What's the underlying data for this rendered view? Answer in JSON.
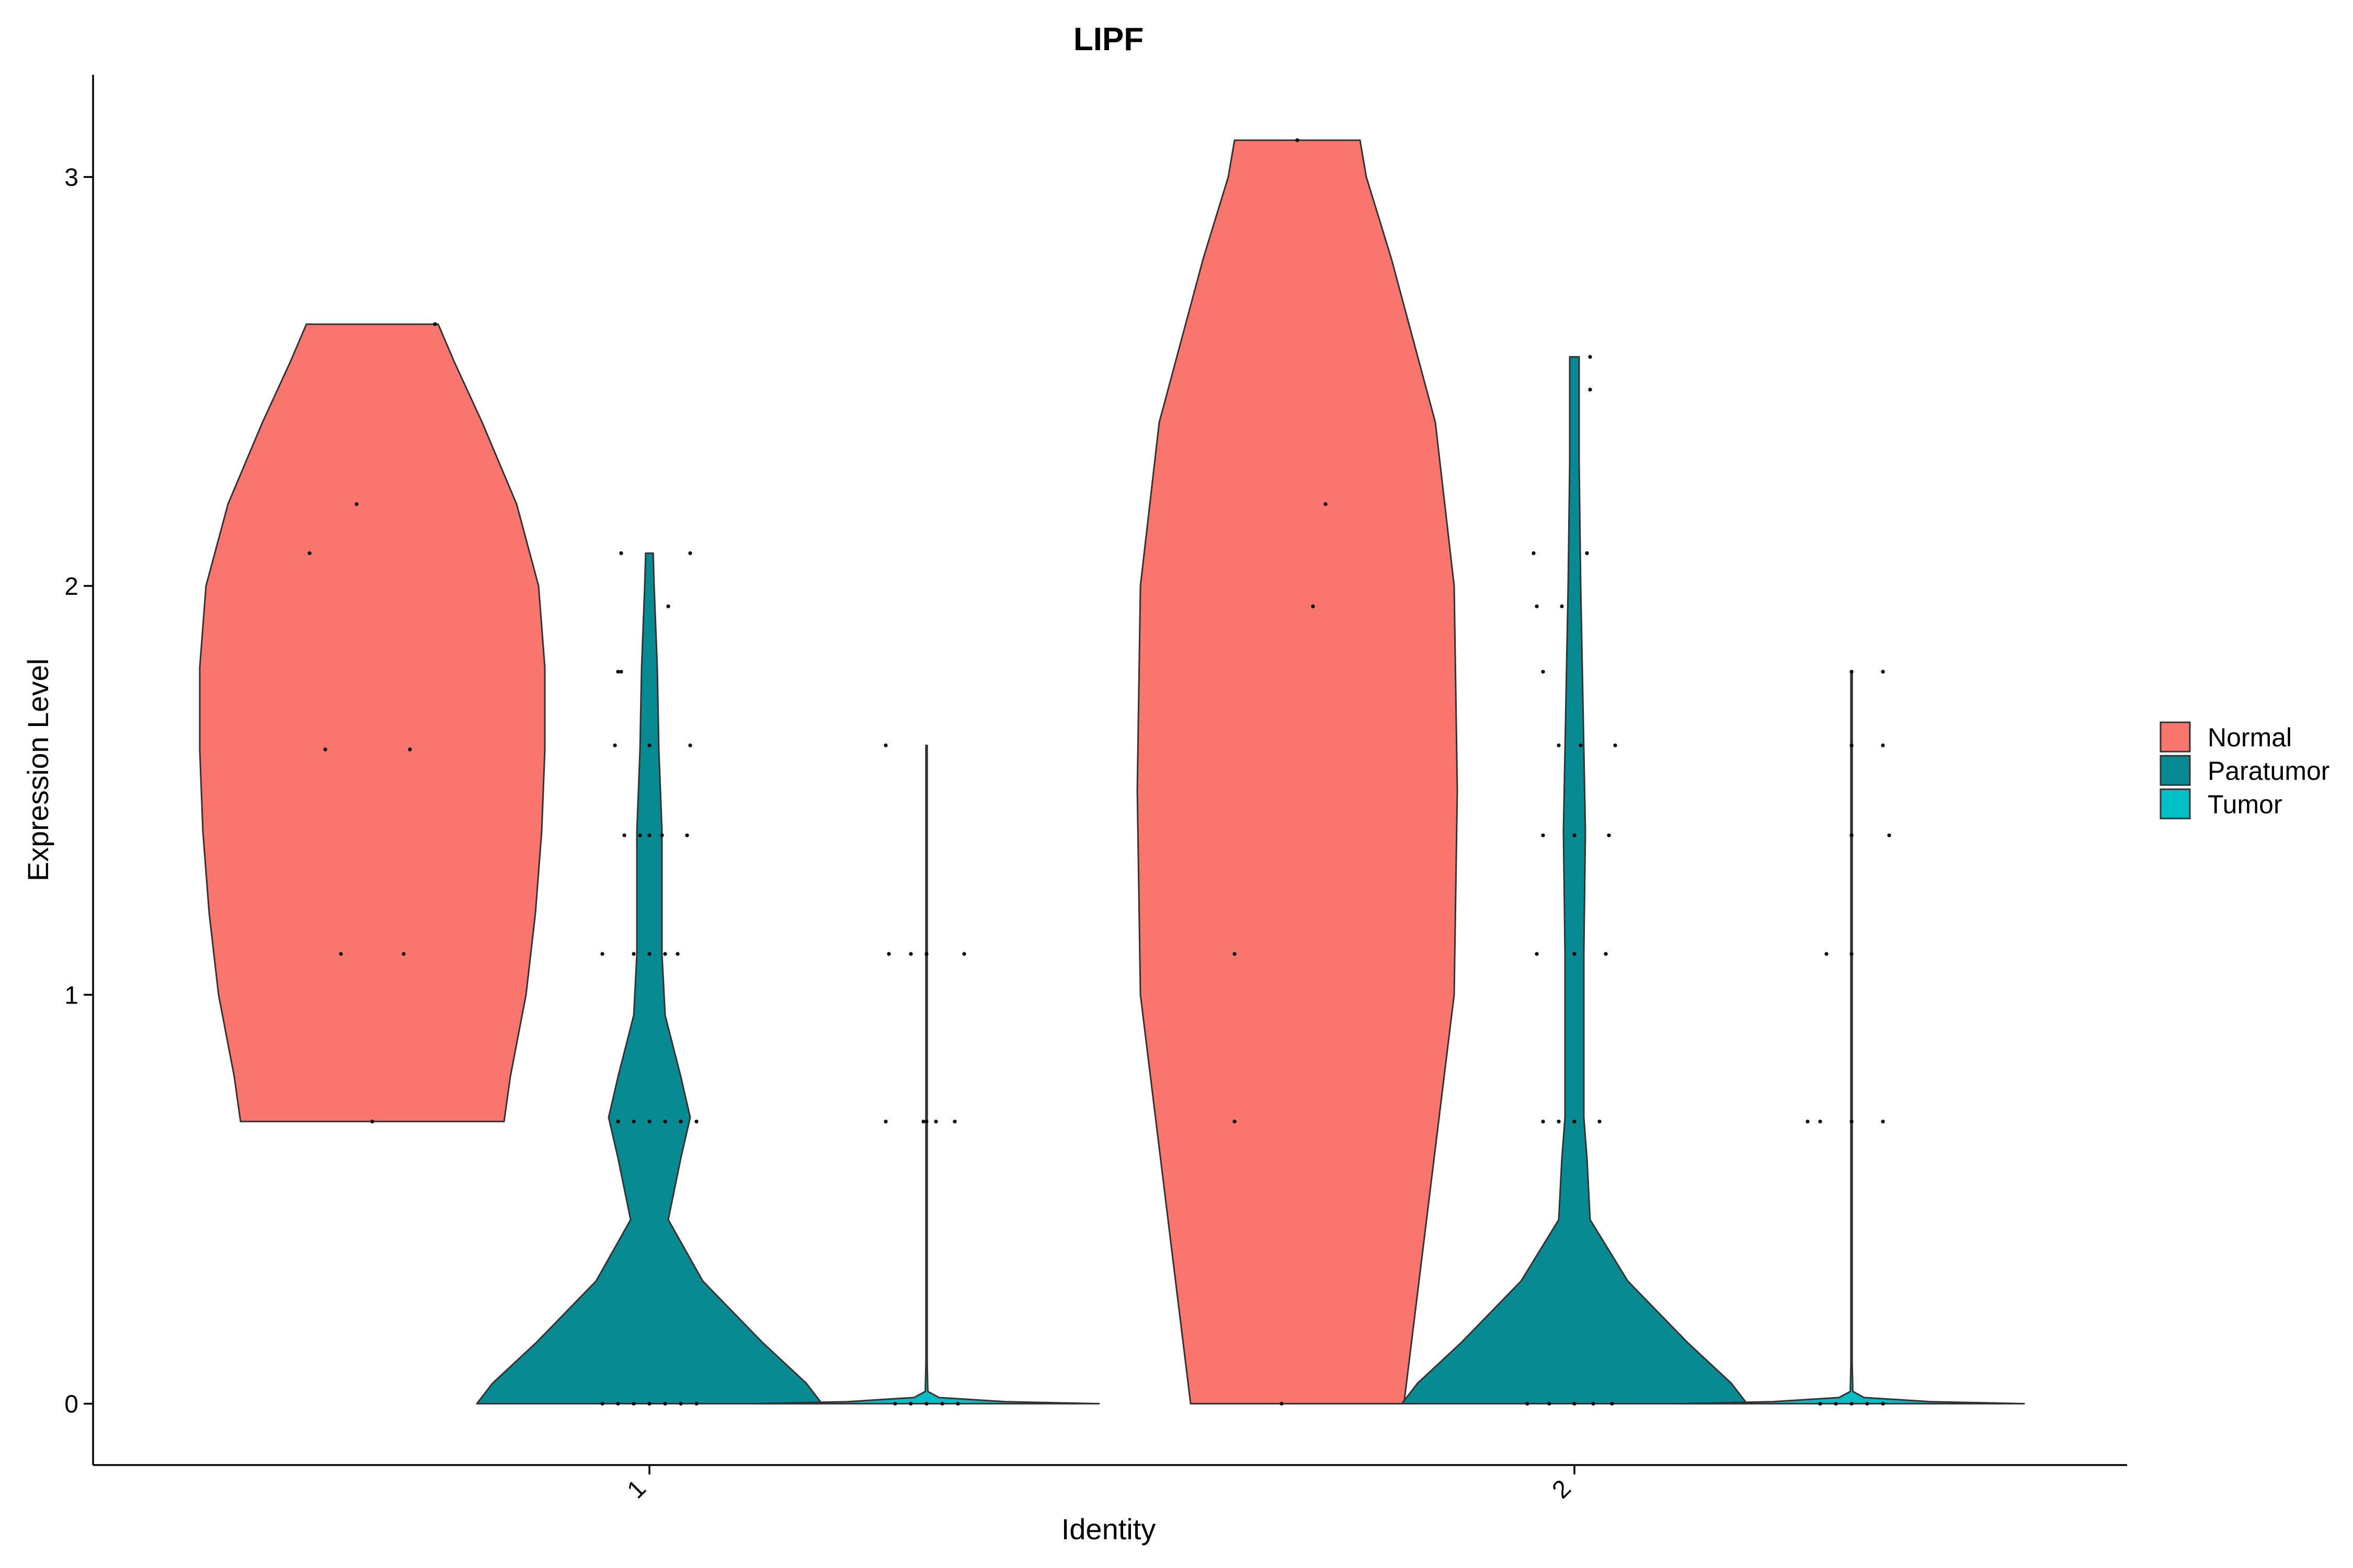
{
  "chart_data": {
    "type": "violin",
    "title": "LIPF",
    "xlabel": "Identity",
    "ylabel": "Expression Level",
    "categories": [
      "1",
      "2"
    ],
    "yticks": [
      0,
      1,
      2,
      3
    ],
    "ylim": [
      -0.15,
      3.25
    ],
    "grid": false,
    "legend_position": "right",
    "legend": [
      {
        "name": "Normal",
        "color": "#F8766D"
      },
      {
        "name": "Paratumor",
        "color": "#088A92"
      },
      {
        "name": "Tumor",
        "color": "#00BFC4"
      }
    ],
    "groups": [
      {
        "category": "1",
        "violins": [
          {
            "series": "Normal",
            "ymin": 0.69,
            "ymax": 2.64,
            "profile": [
              [
                0.69,
                0.42
              ],
              [
                0.8,
                0.44
              ],
              [
                1.0,
                0.49
              ],
              [
                1.2,
                0.52
              ],
              [
                1.4,
                0.54
              ],
              [
                1.6,
                0.55
              ],
              [
                1.8,
                0.55
              ],
              [
                2.0,
                0.53
              ],
              [
                2.2,
                0.46
              ],
              [
                2.4,
                0.35
              ],
              [
                2.55,
                0.26
              ],
              [
                2.64,
                0.21
              ]
            ],
            "points": [
              [
                0.2,
                2.64
              ],
              [
                0.0,
                0.69
              ],
              [
                -0.1,
                1.1
              ],
              [
                -0.2,
                2.08
              ],
              [
                -0.05,
                2.2
              ],
              [
                -0.15,
                1.6
              ],
              [
                0.12,
                1.6
              ],
              [
                0.1,
                1.1
              ]
            ]
          },
          {
            "series": "Paratumor",
            "ymin": 0.0,
            "ymax": 2.08,
            "profile": [
              [
                0.0,
                0.55
              ],
              [
                0.05,
                0.5
              ],
              [
                0.15,
                0.36
              ],
              [
                0.3,
                0.17
              ],
              [
                0.45,
                0.06
              ],
              [
                0.6,
                0.1
              ],
              [
                0.7,
                0.13
              ],
              [
                0.8,
                0.1
              ],
              [
                0.95,
                0.05
              ],
              [
                1.1,
                0.04
              ],
              [
                1.4,
                0.04
              ],
              [
                1.6,
                0.03
              ],
              [
                1.8,
                0.025
              ],
              [
                2.0,
                0.015
              ],
              [
                2.08,
                0.012
              ]
            ],
            "points": [
              [
                -0.15,
                0.0
              ],
              [
                -0.1,
                0.0
              ],
              [
                -0.05,
                0.0
              ],
              [
                0.0,
                0.0
              ],
              [
                0.05,
                0.0
              ],
              [
                0.1,
                0.0
              ],
              [
                0.15,
                0.0
              ],
              [
                -0.1,
                0.69
              ],
              [
                -0.05,
                0.69
              ],
              [
                0.0,
                0.69
              ],
              [
                0.05,
                0.69
              ],
              [
                0.1,
                0.69
              ],
              [
                0.15,
                0.69
              ],
              [
                -0.15,
                1.1
              ],
              [
                -0.05,
                1.1
              ],
              [
                0.0,
                1.1
              ],
              [
                0.05,
                1.1
              ],
              [
                0.09,
                1.1
              ],
              [
                -0.08,
                1.39
              ],
              [
                -0.03,
                1.39
              ],
              [
                0.0,
                1.39
              ],
              [
                0.04,
                1.39
              ],
              [
                0.12,
                1.39
              ],
              [
                -0.11,
                1.61
              ],
              [
                0.0,
                1.61
              ],
              [
                0.13,
                1.61
              ],
              [
                -0.1,
                1.79
              ],
              [
                -0.09,
                1.79
              ],
              [
                0.06,
                1.95
              ],
              [
                -0.09,
                2.08
              ],
              [
                0.13,
                2.08
              ]
            ]
          },
          {
            "series": "Tumor",
            "ymin": 0.0,
            "ymax": 1.61,
            "profile": [
              [
                0.0,
                0.55
              ],
              [
                0.005,
                0.25
              ],
              [
                0.015,
                0.04
              ],
              [
                0.03,
                0.004
              ],
              [
                0.1,
                0.002
              ],
              [
                0.69,
                0.002
              ],
              [
                1.1,
                0.002
              ],
              [
                1.61,
                0.002
              ]
            ],
            "points": [
              [
                -0.1,
                0.0
              ],
              [
                -0.05,
                0.0
              ],
              [
                0.0,
                0.0
              ],
              [
                0.05,
                0.0
              ],
              [
                0.1,
                0.0
              ],
              [
                -0.13,
                0.69
              ],
              [
                -0.01,
                0.69
              ],
              [
                0.0,
                0.69
              ],
              [
                0.03,
                0.69
              ],
              [
                0.09,
                0.69
              ],
              [
                -0.12,
                1.1
              ],
              [
                -0.05,
                1.1
              ],
              [
                0.0,
                1.1
              ],
              [
                0.12,
                1.1
              ],
              [
                -0.13,
                1.61
              ]
            ]
          }
        ]
      },
      {
        "category": "2",
        "violins": [
          {
            "series": "Normal",
            "ymin": 0.0,
            "ymax": 3.09,
            "profile": [
              [
                0.0,
                0.34
              ],
              [
                0.5,
                0.42
              ],
              [
                1.0,
                0.5
              ],
              [
                1.5,
                0.51
              ],
              [
                2.0,
                0.5
              ],
              [
                2.4,
                0.44
              ],
              [
                2.8,
                0.3
              ],
              [
                3.0,
                0.22
              ],
              [
                3.09,
                0.2
              ]
            ],
            "points": [
              [
                0.0,
                3.09
              ],
              [
                0.09,
                2.2
              ],
              [
                0.05,
                1.95
              ],
              [
                -0.2,
                1.1
              ],
              [
                -0.2,
                0.69
              ],
              [
                -0.05,
                0.0
              ]
            ]
          },
          {
            "series": "Paratumor",
            "ymin": 0.0,
            "ymax": 2.56,
            "profile": [
              [
                0.0,
                0.55
              ],
              [
                0.05,
                0.5
              ],
              [
                0.15,
                0.36
              ],
              [
                0.3,
                0.17
              ],
              [
                0.45,
                0.05
              ],
              [
                0.6,
                0.04
              ],
              [
                0.7,
                0.03
              ],
              [
                0.8,
                0.03
              ],
              [
                1.1,
                0.03
              ],
              [
                1.4,
                0.035
              ],
              [
                1.6,
                0.03
              ],
              [
                1.8,
                0.025
              ],
              [
                2.0,
                0.02
              ],
              [
                2.3,
                0.015
              ],
              [
                2.56,
                0.015
              ]
            ],
            "points": [
              [
                -0.15,
                0.0
              ],
              [
                -0.08,
                0.0
              ],
              [
                0.0,
                0.0
              ],
              [
                0.06,
                0.0
              ],
              [
                0.12,
                0.0
              ],
              [
                -0.1,
                0.69
              ],
              [
                -0.05,
                0.69
              ],
              [
                0.0,
                0.69
              ],
              [
                0.08,
                0.69
              ],
              [
                -0.12,
                1.1
              ],
              [
                0.0,
                1.1
              ],
              [
                0.1,
                1.1
              ],
              [
                -0.1,
                1.39
              ],
              [
                0.0,
                1.39
              ],
              [
                0.11,
                1.39
              ],
              [
                -0.05,
                1.61
              ],
              [
                0.02,
                1.61
              ],
              [
                0.13,
                1.61
              ],
              [
                -0.1,
                1.79
              ],
              [
                -0.12,
                1.95
              ],
              [
                -0.04,
                1.95
              ],
              [
                0.04,
                2.08
              ],
              [
                -0.13,
                2.08
              ],
              [
                0.05,
                2.48
              ],
              [
                0.05,
                2.56
              ]
            ]
          },
          {
            "series": "Tumor",
            "ymin": 0.0,
            "ymax": 1.79,
            "profile": [
              [
                0.0,
                0.55
              ],
              [
                0.005,
                0.25
              ],
              [
                0.015,
                0.04
              ],
              [
                0.03,
                0.004
              ],
              [
                0.1,
                0.002
              ],
              [
                0.69,
                0.002
              ],
              [
                1.1,
                0.002
              ],
              [
                1.79,
                0.002
              ]
            ],
            "points": [
              [
                -0.1,
                0.0
              ],
              [
                -0.05,
                0.0
              ],
              [
                0.0,
                0.0
              ],
              [
                0.05,
                0.0
              ],
              [
                0.1,
                0.0
              ],
              [
                -0.14,
                0.69
              ],
              [
                -0.1,
                0.69
              ],
              [
                0.0,
                0.69
              ],
              [
                0.1,
                0.69
              ],
              [
                -0.08,
                1.1
              ],
              [
                0.0,
                1.1
              ],
              [
                0.0,
                1.39
              ],
              [
                0.12,
                1.39
              ],
              [
                0.0,
                1.61
              ],
              [
                0.1,
                1.61
              ],
              [
                0.0,
                1.79
              ],
              [
                0.1,
                1.79
              ]
            ]
          }
        ]
      }
    ]
  }
}
